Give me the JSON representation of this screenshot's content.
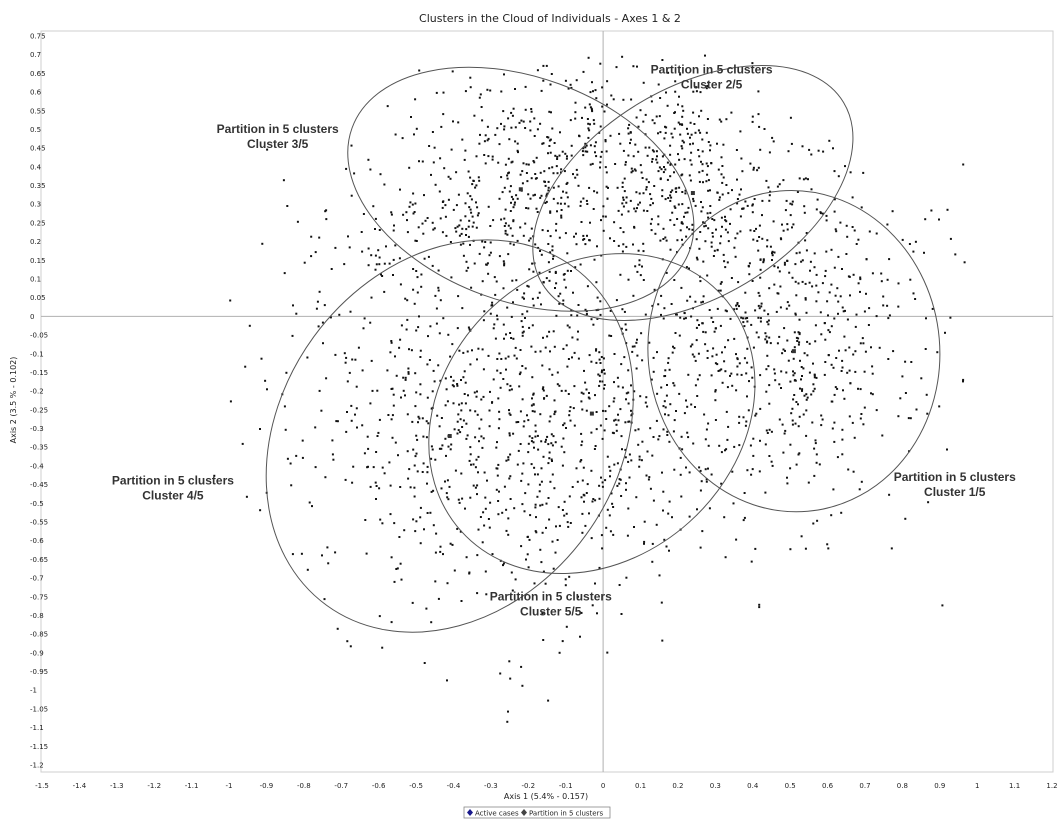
{
  "chart_data": {
    "type": "scatter",
    "title": "Clusters in the Cloud of Individuals - Axes 1 & 2",
    "xlabel": "Axis 1 (5.4% - 0.157)",
    "ylabel": "Axis 2 (3.5 % - 0.102)",
    "xlim": [
      -1.5,
      1.2
    ],
    "ylim": [
      -1.2,
      0.75
    ],
    "xticks": [
      -1.5,
      -1.4,
      -1.3,
      -1.2,
      -1.1,
      -1,
      -0.9,
      -0.8,
      -0.7,
      -0.6,
      -0.5,
      -0.4,
      -0.3,
      -0.2,
      -0.1,
      0,
      0.1,
      0.2,
      0.3,
      0.4,
      0.5,
      0.6,
      0.7,
      0.8,
      0.9,
      1,
      1.1,
      1.2
    ],
    "yticks": [
      0.75,
      0.7,
      0.65,
      0.6,
      0.55,
      0.5,
      0.45,
      0.4,
      0.35,
      0.3,
      0.25,
      0.2,
      0.15,
      0.1,
      0.05,
      0,
      -0.05,
      -0.1,
      -0.15,
      -0.2,
      -0.25,
      -0.3,
      -0.35,
      -0.4,
      -0.45,
      -0.5,
      -0.55,
      -0.6,
      -0.65,
      -0.7,
      -0.75,
      -0.8,
      -0.85,
      -0.9,
      -0.95,
      -1,
      -1.05,
      -1.1,
      -1.15,
      -1.2
    ],
    "grid": false,
    "point_count": 2600,
    "legend": {
      "placement": "bottom-center",
      "entries": [
        {
          "label": "Active cases",
          "color": "#1a1a8c",
          "marker": "diamond"
        },
        {
          "label": "Partition in 5 clusters",
          "color": "#444444",
          "marker": "diamond"
        }
      ]
    },
    "clusters": [
      {
        "line1": "Partition in 5 clusters",
        "line2": "Cluster 1/5",
        "center": [
          0.51,
          -0.093
        ],
        "radii": [
          0.39,
          0.43
        ],
        "angle": -5,
        "label_at": [
          0.94,
          -0.44
        ]
      },
      {
        "line1": "Partition in 5 clusters",
        "line2": "Cluster 2/5",
        "center": [
          0.24,
          0.33
        ],
        "radii": [
          0.47,
          0.28
        ],
        "angle": -31,
        "label_at": [
          0.29,
          0.65
        ]
      },
      {
        "line1": "Partition in 5 clusters",
        "line2": "Cluster 3/5",
        "center": [
          -0.22,
          0.34
        ],
        "radii": [
          0.48,
          0.3
        ],
        "angle": 20,
        "label_at": [
          -0.87,
          0.49
        ]
      },
      {
        "line1": "Partition in 5 clusters",
        "line2": "Cluster 4/5",
        "center": [
          -0.41,
          -0.32
        ],
        "radii": [
          0.45,
          0.56
        ],
        "angle": 36,
        "label_at": [
          -1.15,
          -0.45
        ]
      },
      {
        "line1": "Partition in 5 clusters",
        "line2": "Cluster 5/5",
        "center": [
          -0.03,
          -0.26
        ],
        "radii": [
          0.47,
          0.39
        ],
        "angle": -42,
        "label_at": [
          -0.14,
          -0.76
        ]
      }
    ],
    "colors": {
      "points": "#111111",
      "ellipse": "#555555",
      "axis": "#b0b0b0"
    }
  }
}
